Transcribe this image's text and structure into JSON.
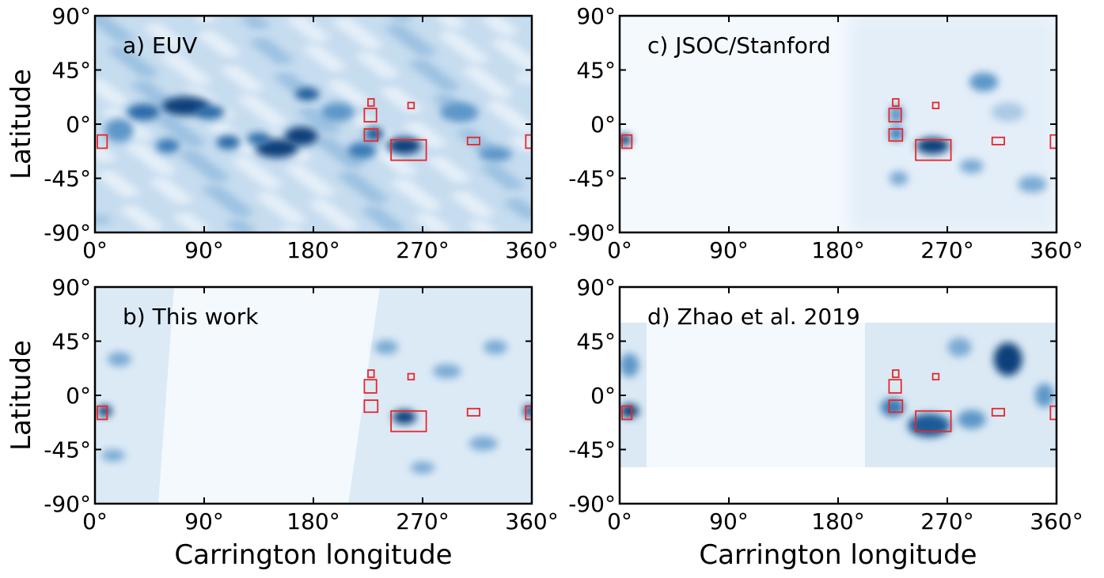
{
  "chart_data": [
    {
      "type": "map",
      "title": "a) EUV",
      "ylabel": "Latitude",
      "xlim": [
        0,
        360
      ],
      "ylim": [
        -90,
        90
      ],
      "xticks": [
        {
          "value": 0,
          "label": "0°"
        },
        {
          "value": 90,
          "label": "90°"
        },
        {
          "value": 180,
          "label": "180°"
        },
        {
          "value": 270,
          "label": "270°"
        },
        {
          "value": 360,
          "label": "360°"
        }
      ],
      "yticks": [
        {
          "value": -90,
          "label": "-90°"
        },
        {
          "value": -45,
          "label": "-45°"
        },
        {
          "value": 0,
          "label": "0°"
        },
        {
          "value": 45,
          "label": "45°"
        },
        {
          "value": 90,
          "label": "90°"
        }
      ],
      "box_color": "#e8262a",
      "boxes": [
        [
          2,
          -20,
          10,
          -9
        ],
        [
          222,
          2,
          232,
          13
        ],
        [
          222,
          -14,
          233,
          -4
        ],
        [
          225,
          15,
          230,
          21
        ],
        [
          258,
          13,
          263,
          18
        ],
        [
          244,
          -30,
          273,
          -13
        ],
        [
          307,
          -17,
          317,
          -11
        ],
        [
          355,
          -20,
          360,
          -9
        ]
      ]
    },
    {
      "type": "map",
      "title": "b) This work",
      "ylabel": "Latitude",
      "xlabel": "Carrington longitude",
      "xlim": [
        0,
        360
      ],
      "ylim": [
        -90,
        90
      ],
      "xticks": [
        {
          "value": 0,
          "label": "0°"
        },
        {
          "value": 90,
          "label": "90°"
        },
        {
          "value": 180,
          "label": "180°"
        },
        {
          "value": 270,
          "label": "270°"
        },
        {
          "value": 360,
          "label": "360°"
        }
      ],
      "yticks": [
        {
          "value": -90,
          "label": "-90°"
        },
        {
          "value": -45,
          "label": "-45°"
        },
        {
          "value": 0,
          "label": "0°"
        },
        {
          "value": 45,
          "label": "45°"
        },
        {
          "value": 90,
          "label": "90°"
        }
      ],
      "box_color": "#e8262a",
      "boxes": [
        [
          2,
          -20,
          10,
          -9
        ],
        [
          222,
          2,
          232,
          13
        ],
        [
          222,
          -14,
          233,
          -4
        ],
        [
          225,
          15,
          230,
          21
        ],
        [
          258,
          13,
          263,
          18
        ],
        [
          244,
          -30,
          273,
          -13
        ],
        [
          307,
          -17,
          317,
          -11
        ],
        [
          355,
          -20,
          360,
          -9
        ]
      ]
    },
    {
      "type": "map",
      "title": "c) JSOC/Stanford",
      "xlim": [
        0,
        360
      ],
      "ylim": [
        -90,
        90
      ],
      "xticks": [
        {
          "value": 0,
          "label": "0°"
        },
        {
          "value": 90,
          "label": "90°"
        },
        {
          "value": 180,
          "label": "180°"
        },
        {
          "value": 270,
          "label": "270°"
        },
        {
          "value": 360,
          "label": "360°"
        }
      ],
      "yticks": [
        {
          "value": -90,
          "label": "-90°"
        },
        {
          "value": -45,
          "label": "-45°"
        },
        {
          "value": 0,
          "label": "0°"
        },
        {
          "value": 45,
          "label": "45°"
        },
        {
          "value": 90,
          "label": "90°"
        }
      ],
      "box_color": "#e8262a",
      "boxes": [
        [
          2,
          -20,
          10,
          -9
        ],
        [
          222,
          2,
          232,
          13
        ],
        [
          222,
          -14,
          233,
          -4
        ],
        [
          225,
          15,
          230,
          21
        ],
        [
          258,
          13,
          263,
          18
        ],
        [
          244,
          -30,
          273,
          -13
        ],
        [
          307,
          -17,
          317,
          -11
        ],
        [
          355,
          -20,
          360,
          -9
        ]
      ]
    },
    {
      "type": "map",
      "title": "d) Zhao et al. 2019",
      "xlabel": "Carrington longitude",
      "xlim": [
        0,
        360
      ],
      "ylim": [
        -90,
        90
      ],
      "xticks": [
        {
          "value": 0,
          "label": "0°"
        },
        {
          "value": 90,
          "label": "90°"
        },
        {
          "value": 180,
          "label": "180°"
        },
        {
          "value": 270,
          "label": "270°"
        },
        {
          "value": 360,
          "label": "360°"
        }
      ],
      "yticks": [
        {
          "value": -90,
          "label": "-90°"
        },
        {
          "value": -45,
          "label": "-45°"
        },
        {
          "value": 0,
          "label": "0°"
        },
        {
          "value": 45,
          "label": "45°"
        },
        {
          "value": 90,
          "label": "90°"
        }
      ],
      "box_color": "#e8262a",
      "boxes": [
        [
          2,
          -20,
          10,
          -9
        ],
        [
          222,
          2,
          232,
          13
        ],
        [
          222,
          -14,
          233,
          -4
        ],
        [
          225,
          15,
          230,
          21
        ],
        [
          258,
          13,
          263,
          18
        ],
        [
          244,
          -30,
          273,
          -13
        ],
        [
          307,
          -17,
          317,
          -11
        ],
        [
          355,
          -20,
          360,
          -9
        ]
      ]
    }
  ]
}
